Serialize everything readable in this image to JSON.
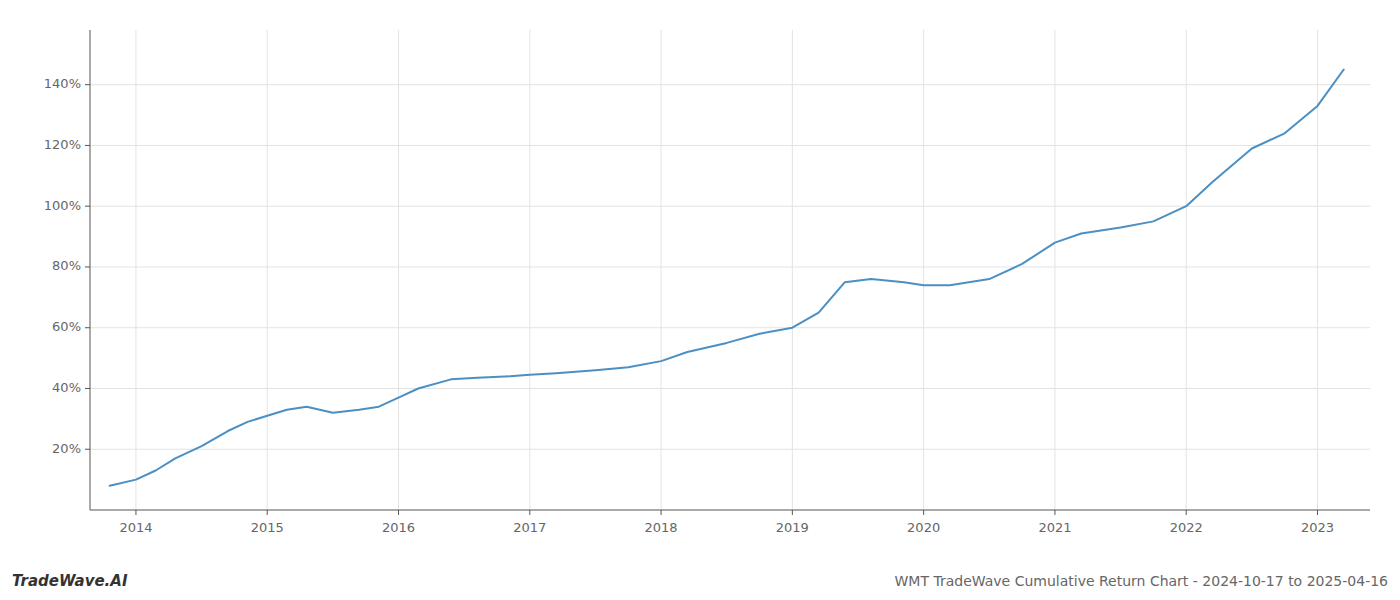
{
  "chart_data": {
    "type": "line",
    "title": "WMT TradeWave Cumulative Return Chart - 2024-10-17 to 2025-04-16",
    "annotations": [
      "TradeWave.AI"
    ],
    "x": [
      2013.8,
      2014.0,
      2014.15,
      2014.3,
      2014.5,
      2014.7,
      2014.85,
      2015.0,
      2015.15,
      2015.3,
      2015.5,
      2015.7,
      2015.85,
      2016.0,
      2016.15,
      2016.4,
      2016.6,
      2016.85,
      2017.0,
      2017.2,
      2017.5,
      2017.75,
      2018.0,
      2018.2,
      2018.5,
      2018.75,
      2019.0,
      2019.2,
      2019.4,
      2019.6,
      2019.85,
      2020.0,
      2020.2,
      2020.5,
      2020.75,
      2021.0,
      2021.2,
      2021.5,
      2021.75,
      2022.0,
      2022.2,
      2022.5,
      2022.75,
      2023.0,
      2023.2
    ],
    "values": [
      8,
      10,
      13,
      17,
      21,
      26,
      29,
      31,
      33,
      34,
      32,
      33,
      34,
      37,
      40,
      43,
      43.5,
      44,
      44.5,
      45,
      46,
      47,
      49,
      52,
      55,
      58,
      60,
      65,
      75,
      76,
      75,
      74,
      74,
      76,
      81,
      88,
      91,
      93,
      95,
      100,
      108,
      119,
      124,
      133,
      145
    ],
    "color": "#4a90c4",
    "xlim": [
      2013.65,
      2023.4
    ],
    "ylim": [
      0,
      158
    ],
    "xticks": [
      2014,
      2015,
      2016,
      2017,
      2018,
      2019,
      2020,
      2021,
      2022,
      2023
    ],
    "yticks": [
      {
        "value": 20,
        "label": "20%"
      },
      {
        "value": 40,
        "label": "40%"
      },
      {
        "value": 60,
        "label": "60%"
      },
      {
        "value": 80,
        "label": "80%"
      },
      {
        "value": 100,
        "label": "100%"
      },
      {
        "value": 120,
        "label": "120%"
      },
      {
        "value": 140,
        "label": "140%"
      }
    ],
    "grid": true
  }
}
